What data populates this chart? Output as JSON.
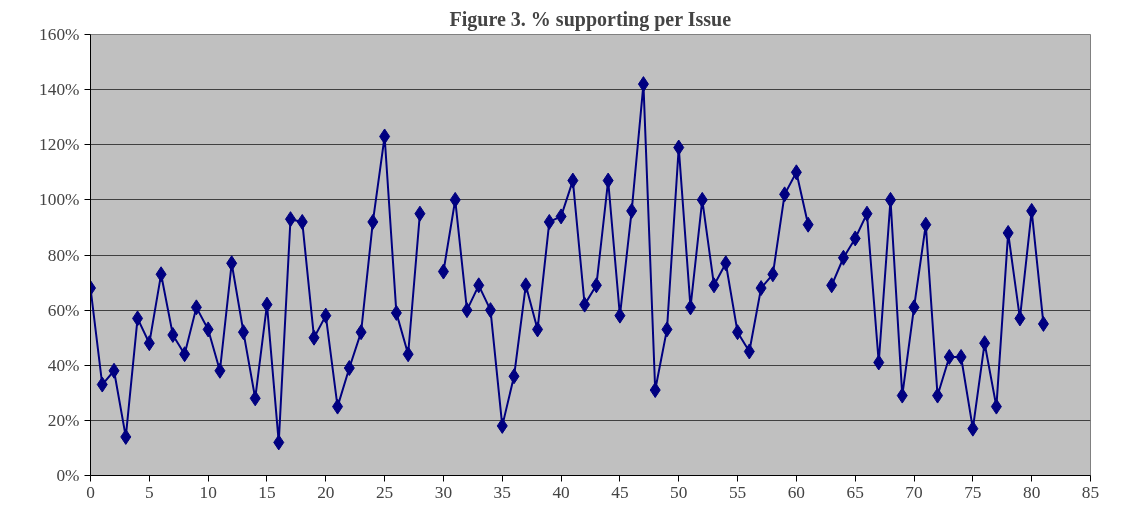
{
  "chart_data": {
    "type": "line",
    "title": "Figure 3. % supporting per Issue",
    "x": [
      0,
      1,
      2,
      3,
      4,
      5,
      6,
      7,
      8,
      9,
      10,
      11,
      12,
      13,
      14,
      15,
      16,
      17,
      18,
      19,
      20,
      21,
      22,
      23,
      24,
      25,
      26,
      27,
      28,
      29,
      30,
      31,
      32,
      33,
      34,
      35,
      36,
      37,
      38,
      39,
      40,
      41,
      42,
      43,
      44,
      45,
      46,
      47,
      48,
      49,
      50,
      51,
      52,
      53,
      54,
      55,
      56,
      57,
      58,
      59,
      60,
      61,
      62,
      63,
      64,
      65,
      66,
      67,
      68,
      69,
      70,
      71,
      72,
      73,
      74,
      75,
      76,
      77,
      78,
      79,
      80,
      81
    ],
    "series": [
      {
        "color": "#000080",
        "values": [
          68,
          33,
          38,
          14,
          57,
          48,
          73,
          51,
          44,
          61,
          53,
          38,
          77,
          52,
          28,
          62,
          12,
          93,
          92,
          50,
          58,
          25,
          39,
          52,
          92,
          123,
          59,
          44,
          95,
          null,
          74,
          100,
          60,
          69,
          60,
          18,
          36,
          69,
          53,
          92,
          94,
          107,
          62,
          69,
          107,
          58,
          96,
          142,
          31,
          53,
          119,
          61,
          100,
          69,
          77,
          52,
          45,
          68,
          73,
          102,
          110,
          91,
          null,
          69,
          79,
          86,
          95,
          41,
          100,
          29,
          61,
          91,
          29,
          43,
          43,
          17,
          48,
          25,
          88,
          57,
          96,
          55
        ]
      }
    ],
    "marker": "diamond",
    "line_style": "solid",
    "xlim": [
      0,
      85
    ],
    "xticks": [
      0,
      5,
      10,
      15,
      20,
      25,
      30,
      35,
      40,
      45,
      50,
      55,
      60,
      65,
      70,
      75,
      80,
      85
    ],
    "ylim": [
      0,
      160
    ],
    "yticks": [
      {
        "value": 0,
        "label": "0%"
      },
      {
        "value": 20,
        "label": "20%"
      },
      {
        "value": 40,
        "label": "40%"
      },
      {
        "value": 60,
        "label": "60%"
      },
      {
        "value": 80,
        "label": "80%"
      },
      {
        "value": 100,
        "label": "100%"
      },
      {
        "value": 120,
        "label": "120%"
      },
      {
        "value": 140,
        "label": "140%"
      },
      {
        "value": 160,
        "label": "160%"
      }
    ],
    "grid": "y"
  }
}
